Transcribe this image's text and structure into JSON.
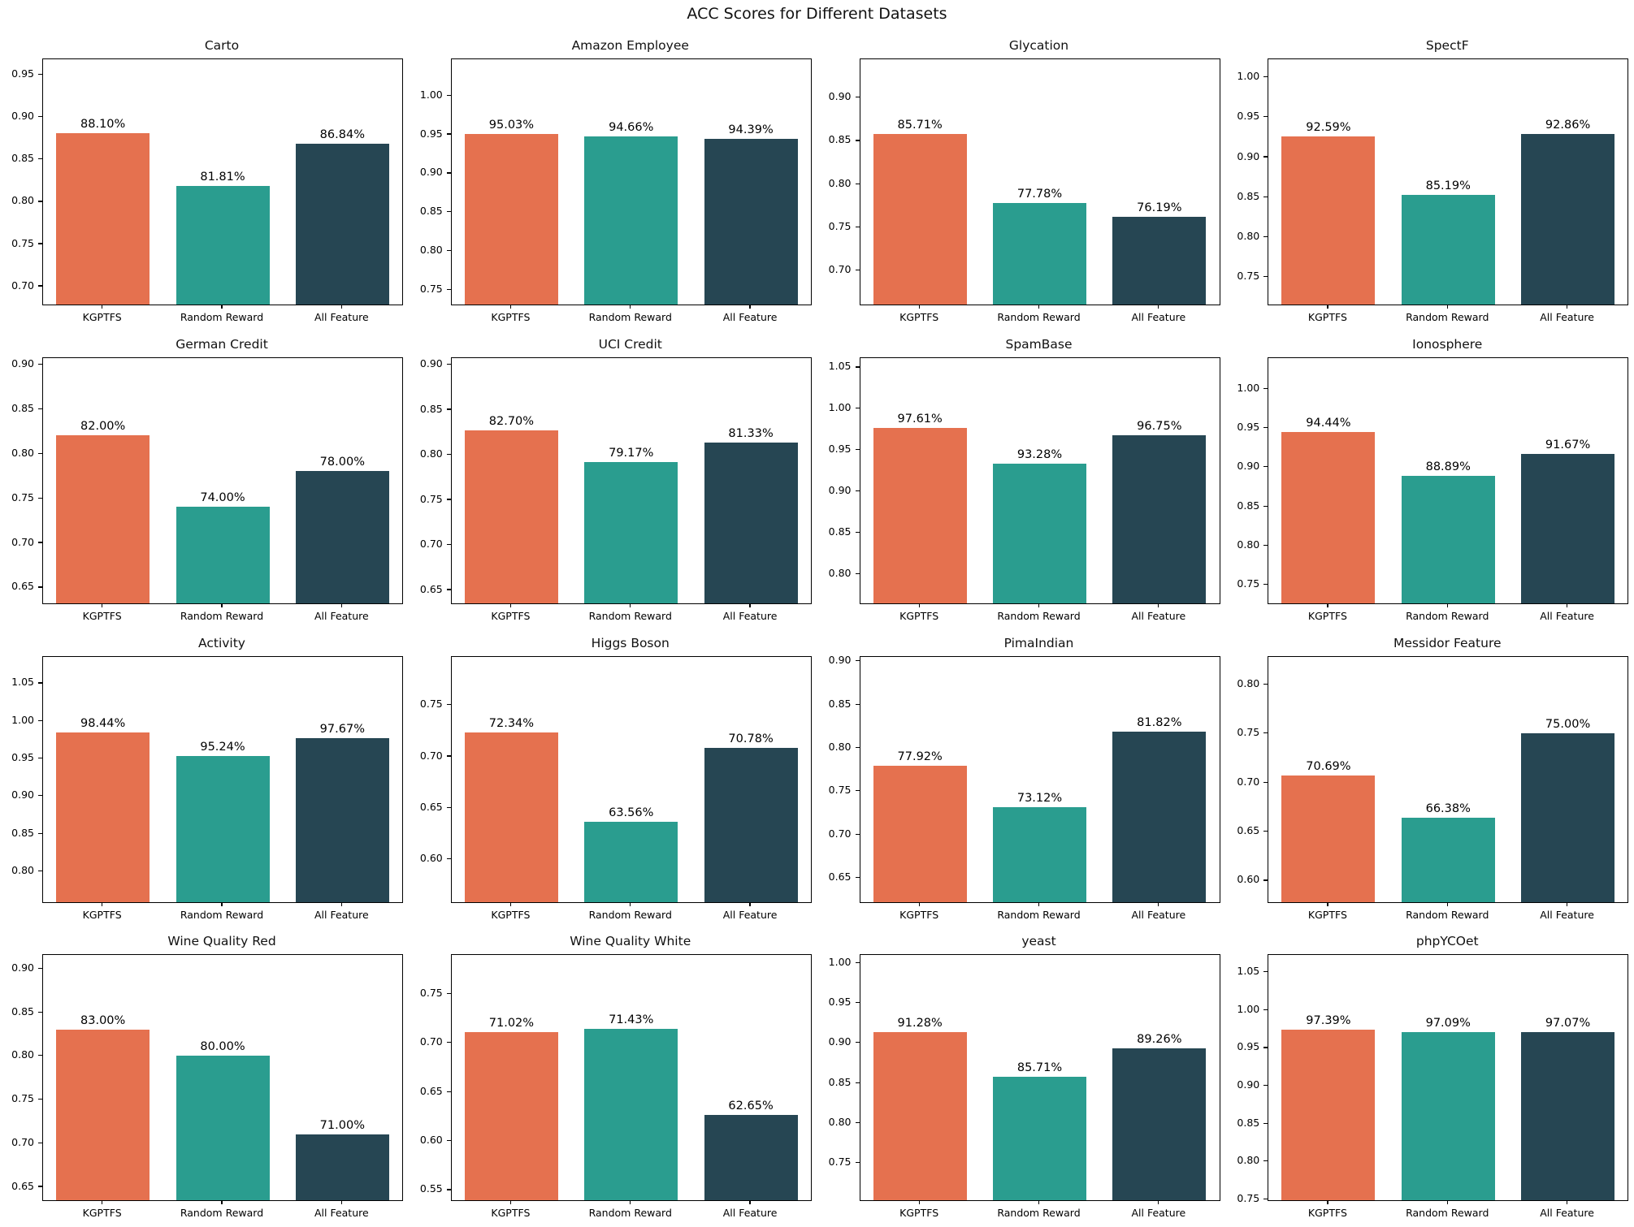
{
  "figure": {
    "title": "ACC Scores for Different Datasets",
    "bar_colors": [
      "#E5714F",
      "#2A9D8F",
      "#264653"
    ],
    "categories": [
      "KGPTFS",
      "Random Reward",
      "All Feature"
    ]
  },
  "chart_data": [
    {
      "type": "bar",
      "title": "Carto",
      "categories": [
        "KGPTFS",
        "Random Reward",
        "All Feature"
      ],
      "values": [
        0.881,
        0.8181,
        0.8684
      ],
      "value_labels": [
        "88.10%",
        "81.81%",
        "86.84%"
      ],
      "yticks": [
        0.7,
        0.75,
        0.8,
        0.85,
        0.9,
        0.95
      ],
      "ylim": [
        0.678,
        0.968
      ]
    },
    {
      "type": "bar",
      "title": "Amazon Employee",
      "categories": [
        "KGPTFS",
        "Random Reward",
        "All Feature"
      ],
      "values": [
        0.9503,
        0.9466,
        0.9439
      ],
      "value_labels": [
        "95.03%",
        "94.66%",
        "94.39%"
      ],
      "yticks": [
        0.75,
        0.8,
        0.85,
        0.9,
        0.95,
        1.0
      ],
      "ylim": [
        0.731,
        1.046
      ]
    },
    {
      "type": "bar",
      "title": "Glycation",
      "categories": [
        "KGPTFS",
        "Random Reward",
        "All Feature"
      ],
      "values": [
        0.8571,
        0.7778,
        0.7619
      ],
      "value_labels": [
        "85.71%",
        "77.78%",
        "76.19%"
      ],
      "yticks": [
        0.7,
        0.75,
        0.8,
        0.85,
        0.9
      ],
      "ylim": [
        0.66,
        0.944
      ]
    },
    {
      "type": "bar",
      "title": "SpectF",
      "categories": [
        "KGPTFS",
        "Random Reward",
        "All Feature"
      ],
      "values": [
        0.9259,
        0.8519,
        0.9286
      ],
      "value_labels": [
        "92.59%",
        "85.19%",
        "92.86%"
      ],
      "yticks": [
        0.75,
        0.8,
        0.85,
        0.9,
        0.95,
        1.0
      ],
      "ylim": [
        0.715,
        1.022
      ]
    },
    {
      "type": "bar",
      "title": "German Credit",
      "categories": [
        "KGPTFS",
        "Random Reward",
        "All Feature"
      ],
      "values": [
        0.82,
        0.74,
        0.78
      ],
      "value_labels": [
        "82.00%",
        "74.00%",
        "78.00%"
      ],
      "yticks": [
        0.65,
        0.7,
        0.75,
        0.8,
        0.85,
        0.9
      ],
      "ylim": [
        0.632,
        0.907
      ]
    },
    {
      "type": "bar",
      "title": "UCI Credit",
      "categories": [
        "KGPTFS",
        "Random Reward",
        "All Feature"
      ],
      "values": [
        0.827,
        0.7917,
        0.8133
      ],
      "value_labels": [
        "82.70%",
        "79.17%",
        "81.33%"
      ],
      "yticks": [
        0.65,
        0.7,
        0.75,
        0.8,
        0.85,
        0.9
      ],
      "ylim": [
        0.635,
        0.907
      ]
    },
    {
      "type": "bar",
      "title": "SpamBase",
      "categories": [
        "KGPTFS",
        "Random Reward",
        "All Feature"
      ],
      "values": [
        0.9761,
        0.9328,
        0.9675
      ],
      "value_labels": [
        "97.61%",
        "93.28%",
        "96.75%"
      ],
      "yticks": [
        0.8,
        0.85,
        0.9,
        0.95,
        1.0,
        1.05
      ],
      "ylim": [
        0.764,
        1.061
      ]
    },
    {
      "type": "bar",
      "title": "Ionosphere",
      "categories": [
        "KGPTFS",
        "Random Reward",
        "All Feature"
      ],
      "values": [
        0.9444,
        0.8889,
        0.9167
      ],
      "value_labels": [
        "94.44%",
        "88.89%",
        "91.67%"
      ],
      "yticks": [
        0.75,
        0.8,
        0.85,
        0.9,
        0.95,
        1.0
      ],
      "ylim": [
        0.726,
        1.039
      ]
    },
    {
      "type": "bar",
      "title": "Activity",
      "categories": [
        "KGPTFS",
        "Random Reward",
        "All Feature"
      ],
      "values": [
        0.9844,
        0.9524,
        0.9767
      ],
      "value_labels": [
        "98.44%",
        "95.24%",
        "97.67%"
      ],
      "yticks": [
        0.8,
        0.85,
        0.9,
        0.95,
        1.0,
        1.05
      ],
      "ylim": [
        0.759,
        1.085
      ]
    },
    {
      "type": "bar",
      "title": "Higgs Boson",
      "categories": [
        "KGPTFS",
        "Random Reward",
        "All Feature"
      ],
      "values": [
        0.7234,
        0.6356,
        0.7078
      ],
      "value_labels": [
        "72.34%",
        "63.56%",
        "70.78%"
      ],
      "yticks": [
        0.6,
        0.65,
        0.7,
        0.75
      ],
      "ylim": [
        0.558,
        0.797
      ]
    },
    {
      "type": "bar",
      "title": "PimaIndian",
      "categories": [
        "KGPTFS",
        "Random Reward",
        "All Feature"
      ],
      "values": [
        0.7792,
        0.7312,
        0.8182
      ],
      "value_labels": [
        "77.92%",
        "73.12%",
        "81.82%"
      ],
      "yticks": [
        0.65,
        0.7,
        0.75,
        0.8,
        0.85,
        0.9
      ],
      "ylim": [
        0.622,
        0.905
      ]
    },
    {
      "type": "bar",
      "title": "Messidor Feature",
      "categories": [
        "KGPTFS",
        "Random Reward",
        "All Feature"
      ],
      "values": [
        0.7069,
        0.6638,
        0.75
      ],
      "value_labels": [
        "70.69%",
        "66.38%",
        "75.00%"
      ],
      "yticks": [
        0.6,
        0.65,
        0.7,
        0.75,
        0.8
      ],
      "ylim": [
        0.578,
        0.828
      ]
    },
    {
      "type": "bar",
      "title": "Wine Quality Red",
      "categories": [
        "KGPTFS",
        "Random Reward",
        "All Feature"
      ],
      "values": [
        0.83,
        0.8,
        0.71
      ],
      "value_labels": [
        "83.00%",
        "80.00%",
        "71.00%"
      ],
      "yticks": [
        0.65,
        0.7,
        0.75,
        0.8,
        0.85,
        0.9
      ],
      "ylim": [
        0.634,
        0.915
      ]
    },
    {
      "type": "bar",
      "title": "Wine Quality White",
      "categories": [
        "KGPTFS",
        "Random Reward",
        "All Feature"
      ],
      "values": [
        0.7102,
        0.7143,
        0.6265
      ],
      "value_labels": [
        "71.02%",
        "71.43%",
        "62.65%"
      ],
      "yticks": [
        0.55,
        0.6,
        0.65,
        0.7,
        0.75
      ],
      "ylim": [
        0.539,
        0.789
      ]
    },
    {
      "type": "bar",
      "title": "yeast",
      "categories": [
        "KGPTFS",
        "Random Reward",
        "All Feature"
      ],
      "values": [
        0.9128,
        0.8571,
        0.8926
      ],
      "value_labels": [
        "91.28%",
        "85.71%",
        "89.26%"
      ],
      "yticks": [
        0.75,
        0.8,
        0.85,
        0.9,
        0.95,
        1.0
      ],
      "ylim": [
        0.703,
        1.009
      ]
    },
    {
      "type": "bar",
      "title": "phpYCOet",
      "categories": [
        "KGPTFS",
        "Random Reward",
        "All Feature"
      ],
      "values": [
        0.9739,
        0.9709,
        0.9707
      ],
      "value_labels": [
        "97.39%",
        "97.09%",
        "97.07%"
      ],
      "yticks": [
        0.75,
        0.8,
        0.85,
        0.9,
        0.95,
        1.0,
        1.05
      ],
      "ylim": [
        0.748,
        1.072
      ]
    }
  ]
}
